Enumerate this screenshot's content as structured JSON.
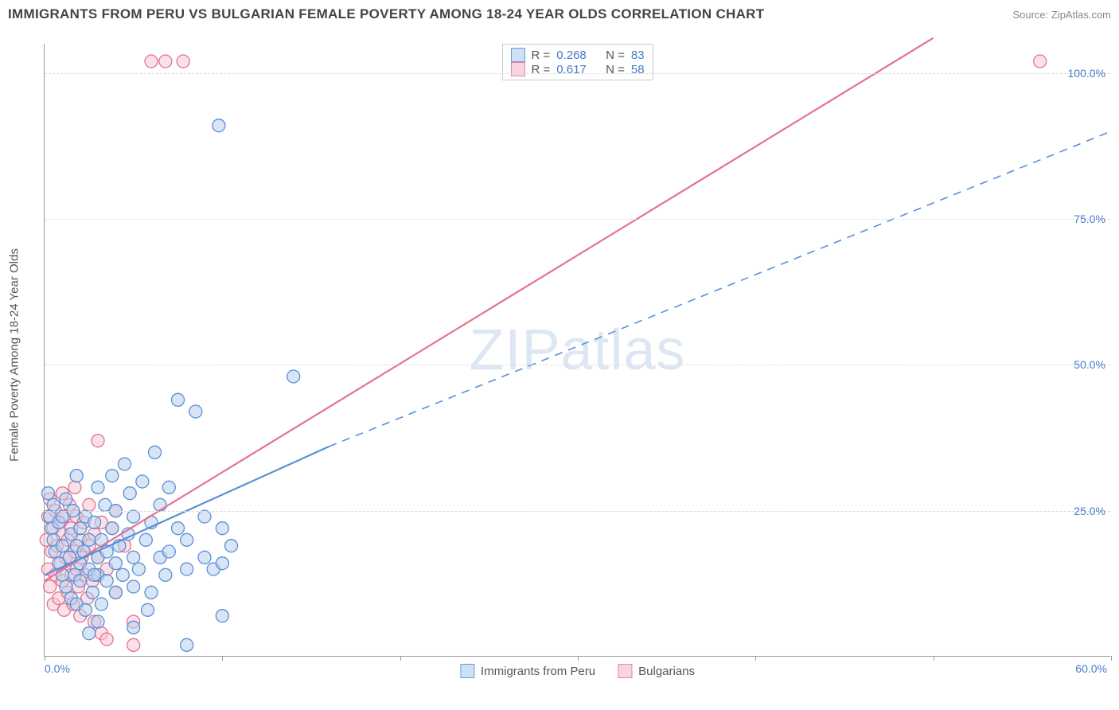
{
  "title": "IMMIGRANTS FROM PERU VS BULGARIAN FEMALE POVERTY AMONG 18-24 YEAR OLDS CORRELATION CHART",
  "source": "Source: ZipAtlas.com",
  "watermark": "ZIPatlas",
  "y_axis_title": "Female Poverty Among 18-24 Year Olds",
  "xlim": [
    0,
    60
  ],
  "ylim": [
    0,
    105
  ],
  "x_ticks": [
    0,
    10,
    20,
    30,
    40,
    50,
    60
  ],
  "x_tick_labels": {
    "0": "0.0%",
    "60": "60.0%"
  },
  "y_gridlines": [
    25,
    50,
    75,
    100
  ],
  "y_tick_labels": {
    "25": "25.0%",
    "50": "50.0%",
    "75": "75.0%",
    "100": "100.0%"
  },
  "series": {
    "blue": {
      "name": "Immigrants from Peru",
      "fill": "#b8d0ec",
      "stroke": "#5a8fd6",
      "fill_opacity": 0.55,
      "R": "0.268",
      "N": "83",
      "marker_radius": 8,
      "regression": {
        "solid_from": [
          0,
          14
        ],
        "solid_to": [
          16,
          36
        ],
        "dash_from": [
          16,
          36
        ],
        "dash_to": [
          60,
          90
        ],
        "line_width": 2.2
      },
      "points": [
        [
          0.2,
          28
        ],
        [
          0.3,
          24
        ],
        [
          0.4,
          22
        ],
        [
          0.5,
          20
        ],
        [
          0.5,
          26
        ],
        [
          0.6,
          18
        ],
        [
          0.8,
          23
        ],
        [
          0.8,
          16
        ],
        [
          1,
          19
        ],
        [
          1,
          24
        ],
        [
          1,
          14
        ],
        [
          1.2,
          27
        ],
        [
          1.2,
          12
        ],
        [
          1.4,
          17
        ],
        [
          1.5,
          21
        ],
        [
          1.5,
          10
        ],
        [
          1.6,
          25
        ],
        [
          1.7,
          14
        ],
        [
          1.8,
          19
        ],
        [
          1.8,
          9
        ],
        [
          2,
          16
        ],
        [
          2,
          22
        ],
        [
          2,
          13
        ],
        [
          2.2,
          18
        ],
        [
          2.3,
          8
        ],
        [
          2.3,
          24
        ],
        [
          2.5,
          15
        ],
        [
          2.5,
          20
        ],
        [
          2.7,
          11
        ],
        [
          2.8,
          23
        ],
        [
          3,
          17
        ],
        [
          3,
          14
        ],
        [
          3,
          29
        ],
        [
          3.2,
          20
        ],
        [
          3.2,
          9
        ],
        [
          3.4,
          26
        ],
        [
          3.5,
          13
        ],
        [
          3.5,
          18
        ],
        [
          3.8,
          22
        ],
        [
          3.8,
          31
        ],
        [
          4,
          16
        ],
        [
          4,
          11
        ],
        [
          4,
          25
        ],
        [
          4.2,
          19
        ],
        [
          4.4,
          14
        ],
        [
          4.5,
          33
        ],
        [
          4.7,
          21
        ],
        [
          4.8,
          28
        ],
        [
          5,
          17
        ],
        [
          5,
          12
        ],
        [
          5,
          24
        ],
        [
          5.3,
          15
        ],
        [
          5.5,
          30
        ],
        [
          5.7,
          20
        ],
        [
          5.8,
          8
        ],
        [
          6,
          23
        ],
        [
          6.2,
          35
        ],
        [
          6.5,
          17
        ],
        [
          6.5,
          26
        ],
        [
          6.8,
          14
        ],
        [
          7,
          29
        ],
        [
          7,
          18
        ],
        [
          7.5,
          22
        ],
        [
          7.5,
          44
        ],
        [
          8,
          15
        ],
        [
          8,
          20
        ],
        [
          8,
          2
        ],
        [
          8.5,
          42
        ],
        [
          9,
          24
        ],
        [
          9,
          17
        ],
        [
          9.5,
          15
        ],
        [
          10,
          22
        ],
        [
          10,
          7
        ],
        [
          10,
          16
        ],
        [
          10.5,
          19
        ],
        [
          14,
          48
        ],
        [
          9.8,
          91
        ],
        [
          1.8,
          31
        ],
        [
          3,
          6
        ],
        [
          5,
          5
        ],
        [
          2.5,
          4
        ],
        [
          2.8,
          14
        ],
        [
          6,
          11
        ]
      ]
    },
    "pink": {
      "name": "Bulgarians",
      "fill": "#f6c8d5",
      "stroke": "#e6718f",
      "fill_opacity": 0.55,
      "R": "0.617",
      "N": "58",
      "marker_radius": 8,
      "regression": {
        "solid_from": [
          0,
          13
        ],
        "solid_to": [
          50,
          106
        ],
        "line_width": 2.2
      },
      "points": [
        [
          0.1,
          20
        ],
        [
          0.2,
          24
        ],
        [
          0.2,
          15
        ],
        [
          0.3,
          27
        ],
        [
          0.3,
          12
        ],
        [
          0.4,
          18
        ],
        [
          0.5,
          22
        ],
        [
          0.5,
          9
        ],
        [
          0.6,
          25
        ],
        [
          0.6,
          14
        ],
        [
          0.7,
          19
        ],
        [
          0.8,
          10
        ],
        [
          0.8,
          23
        ],
        [
          0.9,
          16
        ],
        [
          1,
          28
        ],
        [
          1,
          13
        ],
        [
          1,
          21
        ],
        [
          1.1,
          8
        ],
        [
          1.1,
          24
        ],
        [
          1.2,
          17
        ],
        [
          1.3,
          20
        ],
        [
          1.3,
          11
        ],
        [
          1.4,
          26
        ],
        [
          1.5,
          14
        ],
        [
          1.5,
          22
        ],
        [
          1.6,
          9
        ],
        [
          1.7,
          18
        ],
        [
          1.7,
          29
        ],
        [
          1.8,
          15
        ],
        [
          1.8,
          24
        ],
        [
          1.9,
          12
        ],
        [
          2,
          20
        ],
        [
          2,
          7
        ],
        [
          2.1,
          17
        ],
        [
          2.2,
          23
        ],
        [
          2.3,
          14
        ],
        [
          2.4,
          10
        ],
        [
          2.5,
          26
        ],
        [
          2.5,
          19
        ],
        [
          2.7,
          13
        ],
        [
          2.8,
          21
        ],
        [
          2.8,
          6
        ],
        [
          3,
          37
        ],
        [
          3,
          17
        ],
        [
          3.2,
          4
        ],
        [
          3.2,
          23
        ],
        [
          3.5,
          15
        ],
        [
          3.5,
          3
        ],
        [
          3.8,
          22
        ],
        [
          4,
          11
        ],
        [
          4,
          25
        ],
        [
          4.5,
          19
        ],
        [
          5,
          6
        ],
        [
          5,
          2
        ],
        [
          6,
          102
        ],
        [
          7.8,
          102
        ],
        [
          6.8,
          102
        ],
        [
          56,
          102
        ]
      ]
    }
  },
  "legend_top": {
    "rows": [
      {
        "swatch": "blue",
        "R_label": "R =",
        "R": "0.268",
        "N_label": "N =",
        "N": "83"
      },
      {
        "swatch": "pink",
        "R_label": "R =",
        "R": "0.617",
        "N_label": "N =",
        "N": "58"
      }
    ]
  },
  "colors": {
    "blue_swatch_fill": "#cfe0f4",
    "blue_swatch_border": "#6a9bd8",
    "pink_swatch_fill": "#f8d4de",
    "pink_swatch_border": "#e6859e"
  }
}
